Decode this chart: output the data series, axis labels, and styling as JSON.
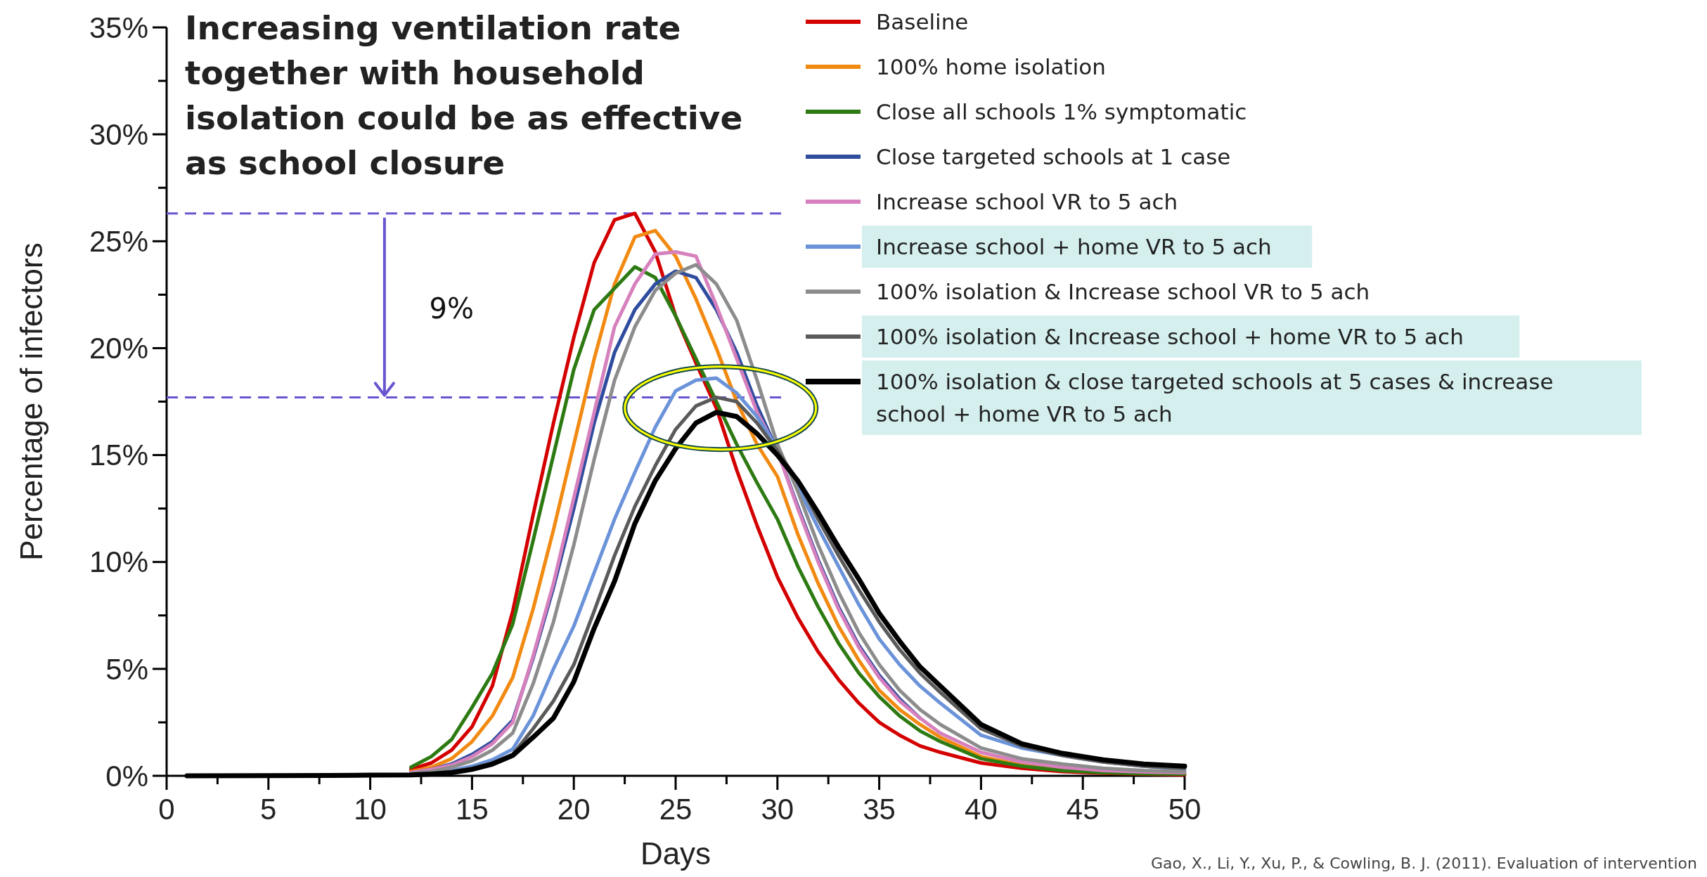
{
  "chart_data": {
    "type": "line",
    "title": "Increasing ventilation rate together with household isolation could be as effective as school closure",
    "xlabel": "Days",
    "ylabel": "Percentage of infectors",
    "legend": "top right",
    "x": [
      1,
      5,
      8,
      10,
      12,
      13,
      14,
      15,
      16,
      17,
      18,
      19,
      20,
      21,
      22,
      23,
      24,
      25,
      26,
      27,
      28,
      29,
      30,
      31,
      32,
      33,
      34,
      35,
      36,
      37,
      38,
      40,
      42,
      44,
      46,
      48,
      50
    ],
    "xlim": [
      0,
      50
    ],
    "xticks": [
      0,
      {
        "value": 2.5,
        "label": null
      },
      5,
      {
        "value": 7.5,
        "label": null
      },
      10,
      {
        "value": 12.5,
        "label": null
      },
      15,
      {
        "value": 17.5,
        "label": null
      },
      20,
      {
        "value": 22.5,
        "label": null
      },
      25,
      {
        "value": 27.5,
        "label": null
      },
      30,
      {
        "value": 32.5,
        "label": null
      },
      35,
      {
        "value": 37.5,
        "label": null
      },
      40,
      {
        "value": 42.5,
        "label": null
      },
      45,
      {
        "value": 47.5,
        "label": null
      },
      50
    ],
    "ylim": [
      0,
      35
    ],
    "yticks": [
      {
        "value": 0,
        "label": "0%"
      },
      {
        "value": 2.5,
        "label": null
      },
      {
        "value": 5,
        "label": "5%"
      },
      {
        "value": 7.5,
        "label": null
      },
      {
        "value": 10,
        "label": "10%"
      },
      {
        "value": 12.5,
        "label": null
      },
      {
        "value": 15,
        "label": "15%"
      },
      {
        "value": 17.5,
        "label": null
      },
      {
        "value": 20,
        "label": "20%"
      },
      {
        "value": 22.5,
        "label": null
      },
      {
        "value": 25,
        "label": "25%"
      },
      {
        "value": 27.5,
        "label": null
      },
      {
        "value": 30,
        "label": "30%"
      },
      {
        "value": 32.5,
        "label": null
      },
      {
        "value": 35,
        "label": "35%"
      }
    ],
    "series": [
      {
        "name": "Baseline",
        "color": "#d40000",
        "values": [
          null,
          null,
          null,
          null,
          0.3,
          0.6,
          1.2,
          2.3,
          4.2,
          7.7,
          12.2,
          16.5,
          20.5,
          24,
          26,
          26.3,
          24.5,
          21.5,
          19.3,
          17.2,
          14.3,
          11.7,
          9.3,
          7.4,
          5.8,
          4.5,
          3.4,
          2.5,
          1.9,
          1.4,
          1.1,
          0.6,
          0.35,
          0.2,
          0.12,
          0.08,
          0.05
        ]
      },
      {
        "name": "100% home isolation",
        "color": "#f28a12",
        "values": [
          null,
          null,
          null,
          null,
          0.2,
          0.4,
          0.8,
          1.6,
          2.8,
          4.6,
          7.8,
          11.5,
          15.5,
          19.5,
          23,
          25.2,
          25.5,
          24.3,
          22.3,
          20,
          17.5,
          15.5,
          14,
          11.3,
          9,
          7,
          5.4,
          4,
          3.1,
          2.4,
          1.8,
          0.9,
          0.5,
          0.3,
          null,
          null,
          null
        ]
      },
      {
        "name": "Close all schools 1% symptomatic",
        "color": "#2d7a12",
        "values": [
          null,
          null,
          null,
          null,
          0.4,
          0.9,
          1.7,
          3.2,
          4.8,
          7.1,
          11,
          15,
          19,
          21.8,
          22.8,
          23.8,
          23.3,
          21.5,
          19.5,
          17.5,
          15.5,
          13.7,
          12,
          9.8,
          7.9,
          6.2,
          4.8,
          3.7,
          2.8,
          2.1,
          1.6,
          0.8,
          0.45,
          0.25,
          0.15,
          0.1,
          0.08
        ]
      },
      {
        "name": "Close targeted schools at 1 case",
        "color": "#2f4c9e",
        "values": [
          null,
          null,
          null,
          null,
          0.15,
          0.3,
          0.55,
          1,
          1.6,
          2.6,
          5.5,
          8.8,
          12.5,
          16.5,
          19.8,
          21.8,
          23,
          23.6,
          23.3,
          21.8,
          19.8,
          17.3,
          15.2,
          12.6,
          10.1,
          7.9,
          6.1,
          4.7,
          3.6,
          2.7,
          null,
          null,
          null,
          null,
          null,
          null,
          null
        ]
      },
      {
        "name": "Increase school VR to 5 ach",
        "color": "#d680bd",
        "values": [
          null,
          null,
          null,
          null,
          0.15,
          0.3,
          0.5,
          0.9,
          1.5,
          2.5,
          5.6,
          9,
          13,
          17,
          21,
          23,
          24.4,
          24.5,
          24.3,
          22,
          19.5,
          17,
          15.2,
          12.5,
          10,
          7.8,
          6,
          4.6,
          3.5,
          2.7,
          2,
          1.1,
          0.65,
          0.4,
          0.25,
          0.18,
          0.15
        ]
      },
      {
        "name": "Increase school + home VR to 5 ach",
        "color": "#6b93d9",
        "values": [
          null,
          null,
          null,
          null,
          0.06,
          0.12,
          0.25,
          0.45,
          0.75,
          1.25,
          2.8,
          5,
          7,
          9.5,
          12,
          14.2,
          16.3,
          18,
          18.5,
          18.6,
          17.9,
          16.8,
          15.3,
          13.5,
          11.6,
          9.8,
          8,
          6.4,
          5.2,
          4.2,
          3.4,
          1.9,
          1.3,
          0.95,
          0.65,
          0.45,
          0.3
        ]
      },
      {
        "name": "100% isolation & Increase school VR to 5 ach",
        "color": "#8c8c8c",
        "values": [
          null,
          null,
          null,
          null,
          0.1,
          0.2,
          0.4,
          0.7,
          1.2,
          2,
          4.3,
          7.2,
          10.8,
          14.8,
          18.5,
          21,
          22.7,
          23.5,
          23.9,
          23,
          21.3,
          18.5,
          15.5,
          13.3,
          10.8,
          8.6,
          6.7,
          5.2,
          4,
          3.1,
          2.4,
          1.3,
          0.8,
          0.55,
          0.35,
          0.25,
          0.2
        ]
      },
      {
        "name": "100% isolation & Increase school + home VR to 5 ach",
        "color": "#5a5a5a",
        "values": [
          null,
          null,
          null,
          null,
          0.05,
          0.1,
          0.2,
          0.35,
          0.6,
          1,
          2.2,
          3.5,
          5.2,
          7.7,
          10.3,
          12.6,
          14.5,
          16.2,
          17.3,
          17.7,
          17.5,
          16.5,
          15.2,
          13.8,
          12,
          10.3,
          8.7,
          7.2,
          5.9,
          4.8,
          3.9,
          2.2,
          1.4,
          0.95,
          0.65,
          0.45,
          0.35
        ]
      },
      {
        "name": "100% isolation & close targeted schools at 5 cases & increase school + home VR to 5 ach",
        "color": "#000000",
        "values": [
          0,
          0.01,
          0.02,
          0.03,
          0.04,
          0.08,
          0.15,
          0.3,
          0.55,
          0.95,
          1.8,
          2.7,
          4.4,
          6.9,
          9.1,
          11.8,
          13.8,
          15.3,
          16.5,
          17,
          16.8,
          16,
          15,
          13.8,
          12.3,
          10.7,
          9.2,
          7.6,
          6.3,
          5.1,
          4.2,
          2.4,
          1.5,
          1.05,
          0.75,
          0.55,
          0.45
        ]
      }
    ],
    "ref_lines": [
      {
        "axis": "y",
        "value": 26.3,
        "color": "#6a55d0",
        "line_style": "dashed"
      },
      {
        "axis": "y",
        "value": 17.7,
        "color": "#6a55d0",
        "line_style": "dashed"
      }
    ],
    "annotations": [
      "9%",
      "Gao, X., Li, Y., Xu, P., & Cowling, B. J. (2011). Evaluation of intervention"
    ]
  }
}
